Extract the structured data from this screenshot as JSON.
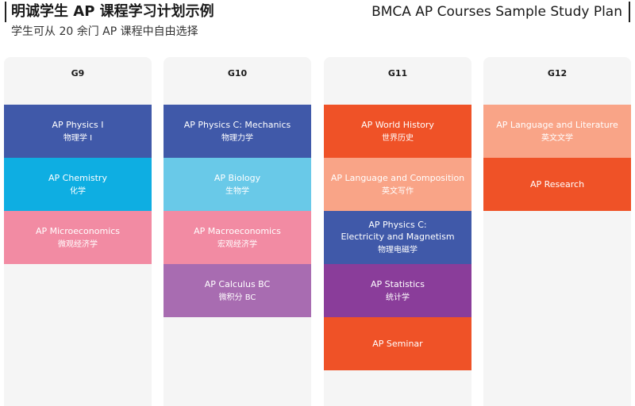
{
  "header": {
    "title_cn": "明诚学生 AP 课程学习计划示例",
    "title_en": "BMCA AP Courses Sample Study Plan",
    "subtitle": "学生可从 20 余门 AP 课程中自由选择"
  },
  "colors": {
    "navy": "#4059a9",
    "cyan": "#0eaee2",
    "pink": "#f28ba3",
    "light_blue": "#69c9e8",
    "mauve": "#a86cb1",
    "orange": "#ef5227",
    "peach": "#f9a487",
    "purple": "#8a3d9a",
    "column_bg": "#f5f5f5"
  },
  "grades": [
    {
      "label": "G9",
      "courses": [
        {
          "en": "AP Physics I",
          "cn": "物理学 I"
        },
        {
          "en": "AP Chemistry",
          "cn": "化学"
        },
        {
          "en": "AP Microeconomics",
          "cn": "微观经济学"
        }
      ]
    },
    {
      "label": "G10",
      "courses": [
        {
          "en": "AP Physics C: Mechanics",
          "cn": "物理力学"
        },
        {
          "en": "AP Biology",
          "cn": "生物学"
        },
        {
          "en": "AP Macroeconomics",
          "cn": "宏观经济学"
        },
        {
          "en": "AP Calculus BC",
          "cn": "微积分 BC"
        }
      ]
    },
    {
      "label": "G11",
      "courses": [
        {
          "en": "AP World History",
          "cn": "世界历史"
        },
        {
          "en": "AP Language and Composition",
          "cn": "英文写作"
        },
        {
          "en": "AP Physics C:",
          "en2": "Electricity and Magnetism",
          "cn": "物理电磁学"
        },
        {
          "en": "AP Statistics",
          "cn": "统计学"
        },
        {
          "en": "AP Seminar"
        }
      ]
    },
    {
      "label": "G12",
      "courses": [
        {
          "en": "AP Language and Literature",
          "cn": "英文文学"
        },
        {
          "en": "AP Research"
        }
      ]
    }
  ]
}
